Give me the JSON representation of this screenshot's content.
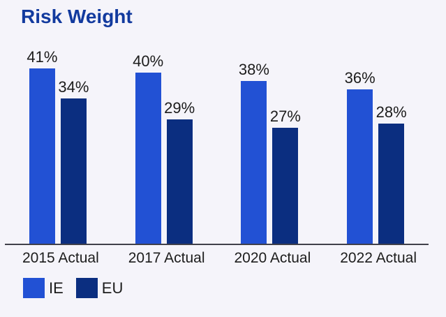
{
  "page": {
    "background": "#f5f4fa"
  },
  "chart_data": {
    "type": "bar",
    "title": "Risk Weight",
    "title_color": "#123a9e",
    "categories": [
      "2015 Actual",
      "2017 Actual",
      "2020 Actual",
      "2022 Actual"
    ],
    "series": [
      {
        "name": "IE",
        "color": "#2251d4",
        "values": [
          41,
          40,
          38,
          36
        ]
      },
      {
        "name": "EU",
        "color": "#0b2e80",
        "values": [
          34,
          29,
          27,
          28
        ]
      }
    ],
    "value_suffix": "%",
    "data_labels": true,
    "ylim": [
      0,
      47
    ],
    "grid": false,
    "y_axis_visible": false,
    "legend_position": "bottom-left",
    "axis_line_color": "#40404a",
    "label_color": "#1c1c1c"
  }
}
